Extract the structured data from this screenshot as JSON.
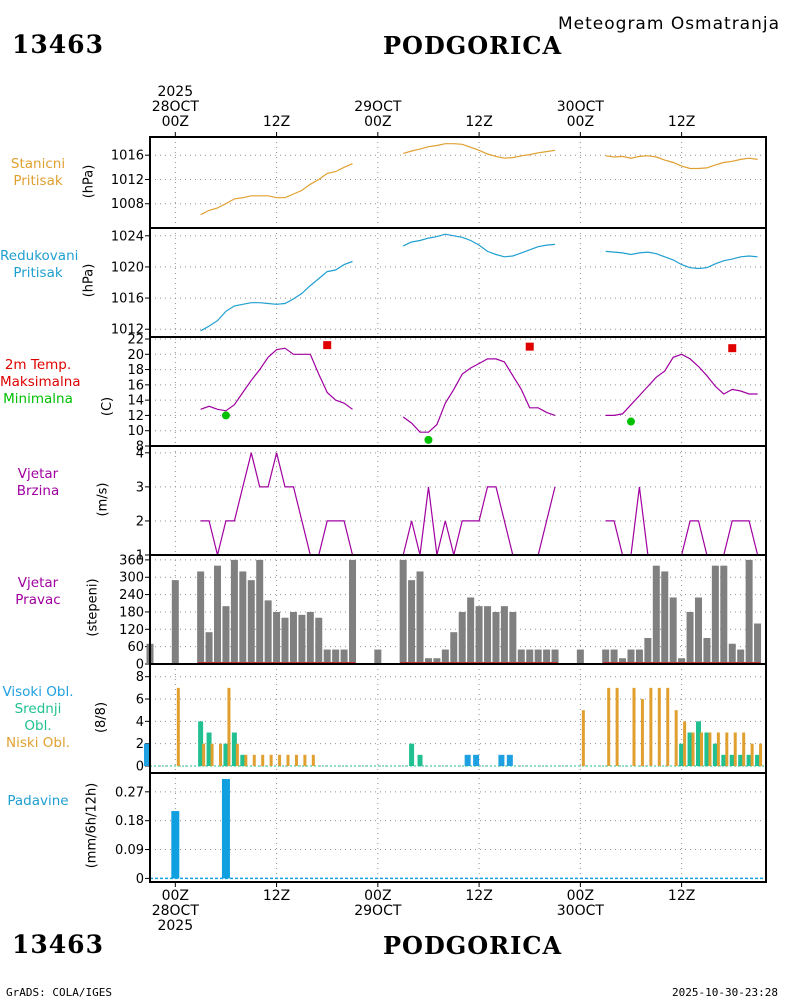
{
  "header": {
    "station_id": "13463",
    "city": "PODGORICA",
    "subtitle": "Meteogram Osmatranja"
  },
  "footer": {
    "station_id": "13463",
    "city": "PODGORICA",
    "left": "GrADS: COLA/IGES",
    "right": "2025-10-30-23:28"
  },
  "time_axis": {
    "top_labels": [
      {
        "hour": 0,
        "lines": [
          "2025",
          "28OCT",
          "00Z"
        ]
      },
      {
        "hour": 12,
        "lines": [
          "12Z"
        ]
      },
      {
        "hour": 24,
        "lines": [
          "29OCT",
          "00Z"
        ]
      },
      {
        "hour": 36,
        "lines": [
          "12Z"
        ]
      },
      {
        "hour": 48,
        "lines": [
          "30OCT",
          "00Z"
        ]
      },
      {
        "hour": 60,
        "lines": [
          "12Z"
        ]
      }
    ],
    "bottom_labels": [
      {
        "hour": 0,
        "lines": [
          "00Z",
          "28OCT",
          "2025"
        ]
      },
      {
        "hour": 12,
        "lines": [
          "12Z"
        ]
      },
      {
        "hour": 24,
        "lines": [
          "00Z",
          "29OCT"
        ]
      },
      {
        "hour": 36,
        "lines": [
          "12Z"
        ]
      },
      {
        "hour": 48,
        "lines": [
          "00Z",
          "30OCT"
        ]
      },
      {
        "hour": 60,
        "lines": [
          "12Z"
        ]
      }
    ],
    "xlim_hours": [
      -3,
      70
    ]
  },
  "colors": {
    "station_pressure": "#e0a030",
    "reduced_pressure": "#1f9fd0",
    "temp_line": "#a000a0",
    "tmax": "#e00000",
    "tmin": "#00c000",
    "wind_speed": "#a000a0",
    "wind_dir": "#808080",
    "wind_dir_baseline": "#c03030",
    "cloud_high": "#1fa0e0",
    "cloud_mid": "#20c090",
    "cloud_low": "#e0a030",
    "precip": "#10a0e0",
    "grid": "#909090"
  },
  "panel_labels": {
    "p1": {
      "lines": [
        "Stanicni",
        "Pritisak"
      ],
      "color": "#e0a030",
      "unit": "(hPa)"
    },
    "p2": {
      "lines": [
        "Redukovani",
        "Pritisak"
      ],
      "color": "#1f9fd0",
      "unit": "(hPa)"
    },
    "p3": {
      "line1": "2m Temp.",
      "line2": "Maksimalna",
      "line3": "Minimalna",
      "color1": "#e00000",
      "color2": "#e00000",
      "color3": "#00c000",
      "unit": "(C)"
    },
    "p4": {
      "lines": [
        "Vjetar",
        "Brzina"
      ],
      "color": "#a000a0",
      "unit": "(m/s)"
    },
    "p5": {
      "lines": [
        "Vjetar",
        "Pravac"
      ],
      "color": "#a000a0",
      "unit": "(stepeni)"
    },
    "p6": {
      "line1": "Visoki Obl.",
      "line2": "Srednji Obl.",
      "line3": "Niski Obl.",
      "color1": "#1fa0e0",
      "color2": "#20c090",
      "color3": "#e0a030",
      "unit": "(8/8)"
    },
    "p7": {
      "lines": [
        "Padavine"
      ],
      "color": "#1f9fd0",
      "unit": "(mm/6h/12h)"
    }
  },
  "chart_data": [
    {
      "id": "station_pressure",
      "type": "line",
      "title": "Stanicni Pritisak",
      "ylabel": "(hPa)",
      "ylim": [
        1004,
        1019
      ],
      "yticks": [
        1008,
        1012,
        1016
      ],
      "segments": [
        {
          "x": [
            3,
            4,
            5,
            6,
            7,
            8,
            9,
            10,
            11,
            12,
            13,
            14,
            15,
            16,
            17,
            18,
            19,
            20,
            21
          ],
          "y": [
            1006.2,
            1006.9,
            1007.3,
            1008.0,
            1008.8,
            1009.0,
            1009.3,
            1009.3,
            1009.3,
            1009.0,
            1009.0,
            1009.6,
            1010.2,
            1011.2,
            1012.0,
            1013.0,
            1013.3,
            1014.0,
            1014.6
          ]
        },
        {
          "x": [
            27,
            28,
            29,
            30,
            31,
            32,
            33,
            34,
            35,
            36,
            37,
            38,
            39,
            40,
            41,
            42,
            43,
            44,
            45
          ],
          "y": [
            1016.3,
            1016.7,
            1017.0,
            1017.4,
            1017.6,
            1017.9,
            1017.9,
            1017.8,
            1017.3,
            1016.8,
            1016.2,
            1015.8,
            1015.5,
            1015.6,
            1015.9,
            1016.1,
            1016.4,
            1016.6,
            1016.8
          ]
        },
        {
          "x": [
            51,
            52,
            53,
            54,
            55,
            56,
            57,
            58,
            59,
            60,
            61,
            62,
            63,
            64,
            65,
            66,
            67,
            68,
            69
          ],
          "y": [
            1015.9,
            1015.7,
            1015.8,
            1015.5,
            1015.8,
            1015.9,
            1015.7,
            1015.2,
            1014.8,
            1014.2,
            1013.8,
            1013.8,
            1013.9,
            1014.4,
            1014.8,
            1015.0,
            1015.3,
            1015.5,
            1015.3
          ]
        }
      ]
    },
    {
      "id": "reduced_pressure",
      "type": "line",
      "title": "Redukovani Pritisak",
      "ylabel": "(hPa)",
      "ylim": [
        1011,
        1025
      ],
      "yticks": [
        1012,
        1016,
        1020,
        1024
      ],
      "segments": [
        {
          "x": [
            3,
            4,
            5,
            6,
            7,
            8,
            9,
            10,
            11,
            12,
            13,
            14,
            15,
            16,
            17,
            18,
            19,
            20,
            21
          ],
          "y": [
            1011.8,
            1012.4,
            1013.1,
            1014.3,
            1015.0,
            1015.2,
            1015.4,
            1015.4,
            1015.3,
            1015.2,
            1015.3,
            1015.9,
            1016.6,
            1017.6,
            1018.5,
            1019.4,
            1019.6,
            1020.3,
            1020.7
          ]
        },
        {
          "x": [
            27,
            28,
            29,
            30,
            31,
            32,
            33,
            34,
            35,
            36,
            37,
            38,
            39,
            40,
            41,
            42,
            43,
            44,
            45
          ],
          "y": [
            1022.7,
            1023.2,
            1023.4,
            1023.7,
            1023.9,
            1024.2,
            1024.0,
            1023.8,
            1023.4,
            1022.8,
            1022.0,
            1021.6,
            1021.3,
            1021.4,
            1021.8,
            1022.2,
            1022.6,
            1022.8,
            1022.9
          ]
        },
        {
          "x": [
            51,
            52,
            53,
            54,
            55,
            56,
            57,
            58,
            59,
            60,
            61,
            62,
            63,
            64,
            65,
            66,
            67,
            68,
            69
          ],
          "y": [
            1022.0,
            1021.9,
            1021.8,
            1021.6,
            1021.8,
            1021.9,
            1021.7,
            1021.3,
            1020.9,
            1020.3,
            1019.9,
            1019.8,
            1019.9,
            1020.4,
            1020.8,
            1021.0,
            1021.3,
            1021.4,
            1021.3
          ]
        }
      ]
    },
    {
      "id": "temperature",
      "type": "line",
      "title": "2m Temp. Maksimalna Minimalna",
      "ylabel": "(C)",
      "ylim": [
        8,
        22
      ],
      "yticks": [
        8,
        10,
        12,
        14,
        16,
        18,
        20,
        22
      ],
      "segments": [
        {
          "x": [
            3,
            4,
            5,
            6,
            7,
            8,
            9,
            10,
            11,
            12,
            13,
            14,
            15,
            16,
            17,
            18,
            19,
            20,
            21
          ],
          "y": [
            12.8,
            13.2,
            12.8,
            12.6,
            13.4,
            15.0,
            16.6,
            18.0,
            19.6,
            20.6,
            20.8,
            20.0,
            20.0,
            20.0,
            17.4,
            15.0,
            14.0,
            13.6,
            12.8
          ]
        },
        {
          "x": [
            27,
            28,
            29,
            30,
            31,
            32,
            33,
            34,
            35,
            36,
            37,
            38,
            39,
            40,
            41,
            42,
            43,
            44,
            45
          ],
          "y": [
            11.8,
            11.0,
            9.8,
            9.8,
            10.8,
            13.6,
            15.4,
            17.4,
            18.2,
            18.8,
            19.4,
            19.4,
            19.0,
            17.2,
            15.4,
            13.0,
            13.0,
            12.4,
            12.0
          ]
        },
        {
          "x": [
            51,
            52,
            53,
            54,
            55,
            56,
            57,
            58,
            59,
            60,
            61,
            62,
            63,
            64,
            65,
            66,
            67,
            68,
            69
          ],
          "y": [
            12.0,
            12.0,
            12.2,
            13.4,
            14.6,
            15.8,
            17.0,
            17.8,
            19.6,
            20.0,
            19.4,
            18.4,
            17.2,
            15.8,
            14.8,
            15.4,
            15.2,
            14.8,
            14.8
          ]
        }
      ],
      "tmax": {
        "x": [
          18,
          42,
          66
        ],
        "y": [
          21.2,
          21.0,
          20.8
        ]
      },
      "tmin": {
        "x": [
          6,
          30,
          54
        ],
        "y": [
          12.0,
          8.8,
          11.2
        ]
      }
    },
    {
      "id": "wind_speed",
      "type": "line",
      "title": "Vjetar Brzina",
      "ylabel": "(m/s)",
      "ylim": [
        1,
        4.2
      ],
      "yticks": [
        1,
        2,
        3,
        4
      ],
      "segments": [
        {
          "x": [
            3,
            4,
            5,
            6,
            7,
            8,
            9,
            10,
            11,
            12,
            13,
            14,
            15,
            16,
            17,
            18,
            19,
            20,
            21
          ],
          "y": [
            2,
            2,
            1,
            2,
            2,
            3,
            4,
            3,
            3,
            4,
            3,
            3,
            2,
            1,
            1,
            2,
            2,
            2,
            1
          ]
        },
        {
          "x": [
            27,
            28,
            29,
            30,
            31,
            32,
            33,
            34,
            35,
            36,
            37,
            38,
            39,
            40,
            41,
            42,
            43,
            44,
            45
          ],
          "y": [
            1,
            2,
            1,
            3,
            1,
            2,
            1,
            2,
            2,
            2,
            3,
            3,
            2,
            1,
            1,
            1,
            1,
            2,
            3
          ]
        },
        {
          "x": [
            51,
            52,
            53,
            54,
            55,
            56,
            57,
            58,
            59,
            60,
            61,
            62,
            63,
            64,
            65,
            66,
            67,
            68,
            69
          ],
          "y": [
            2,
            2,
            1,
            1,
            3,
            1,
            1,
            1,
            1,
            1,
            2,
            2,
            1,
            1,
            1,
            2,
            2,
            2,
            1
          ]
        }
      ]
    },
    {
      "id": "wind_direction",
      "type": "bar",
      "title": "Vjetar Pravac",
      "ylabel": "(stepeni)",
      "ylim": [
        0,
        370
      ],
      "yticks": [
        0,
        60,
        120,
        180,
        240,
        300,
        360
      ],
      "x": [
        -3,
        0,
        3,
        4,
        5,
        6,
        7,
        8,
        9,
        10,
        11,
        12,
        13,
        14,
        15,
        16,
        17,
        18,
        19,
        20,
        21,
        24,
        27,
        28,
        29,
        30,
        31,
        32,
        33,
        34,
        35,
        36,
        37,
        38,
        39,
        40,
        41,
        42,
        43,
        44,
        45,
        48,
        51,
        52,
        53,
        54,
        55,
        56,
        57,
        58,
        59,
        60,
        61,
        62,
        63,
        64,
        65,
        66,
        67,
        68,
        69
      ],
      "values": [
        70,
        290,
        320,
        110,
        340,
        200,
        360,
        320,
        290,
        360,
        220,
        180,
        160,
        180,
        170,
        180,
        160,
        50,
        50,
        50,
        360,
        50,
        360,
        290,
        320,
        20,
        20,
        50,
        110,
        180,
        230,
        200,
        200,
        180,
        200,
        180,
        50,
        50,
        50,
        50,
        50,
        50,
        50,
        50,
        20,
        50,
        50,
        90,
        340,
        320,
        230,
        20,
        180,
        230,
        90,
        340,
        340,
        70,
        50,
        360,
        140
      ]
    },
    {
      "id": "clouds",
      "type": "bar",
      "title": "Visoki Obl. Srednji Obl. Niski Obl.",
      "ylabel": "(8/8)",
      "ylim": [
        0,
        8.6
      ],
      "yticks": [
        0,
        2,
        4,
        6,
        8
      ],
      "series": [
        {
          "name": "Visoki Obl.",
          "x": [
            -3,
            35,
            36,
            39,
            40
          ],
          "values": [
            2,
            1,
            1,
            1,
            1
          ]
        },
        {
          "name": "Srednji Obl.",
          "x": [
            3,
            4,
            6,
            7,
            8,
            28,
            29,
            60,
            61,
            62,
            63,
            64,
            65,
            66,
            67,
            68,
            69
          ],
          "values": [
            4,
            3,
            2,
            3,
            1,
            2,
            1,
            2,
            3,
            4,
            3,
            2,
            1,
            1,
            1,
            1,
            1
          ]
        },
        {
          "name": "Niski Obl.",
          "x": [
            0,
            3,
            4,
            5,
            6,
            7,
            8,
            9,
            10,
            11,
            12,
            13,
            14,
            15,
            16,
            48,
            51,
            52,
            54,
            55,
            56,
            57,
            58,
            59,
            60,
            61,
            62,
            63,
            64,
            65,
            66,
            67,
            68,
            69
          ],
          "values": [
            7,
            2,
            2,
            2,
            7,
            2,
            1,
            1,
            1,
            1,
            1,
            1,
            1,
            1,
            1,
            5,
            7,
            7,
            7,
            6,
            7,
            7,
            7,
            5,
            4,
            3,
            3,
            3,
            3,
            3,
            3,
            3,
            2,
            2
          ]
        }
      ]
    },
    {
      "id": "precipitation",
      "type": "bar",
      "title": "Padavine",
      "ylabel": "(mm/6h/12h)",
      "ylim": [
        -0.005,
        0.31
      ],
      "yticks": [
        0,
        0.09,
        0.18,
        0.27
      ],
      "yticklabels": [
        "0",
        "0.09",
        "0.18",
        "0.27"
      ],
      "x": [
        0,
        6
      ],
      "values": [
        0.21,
        0.31
      ]
    }
  ]
}
